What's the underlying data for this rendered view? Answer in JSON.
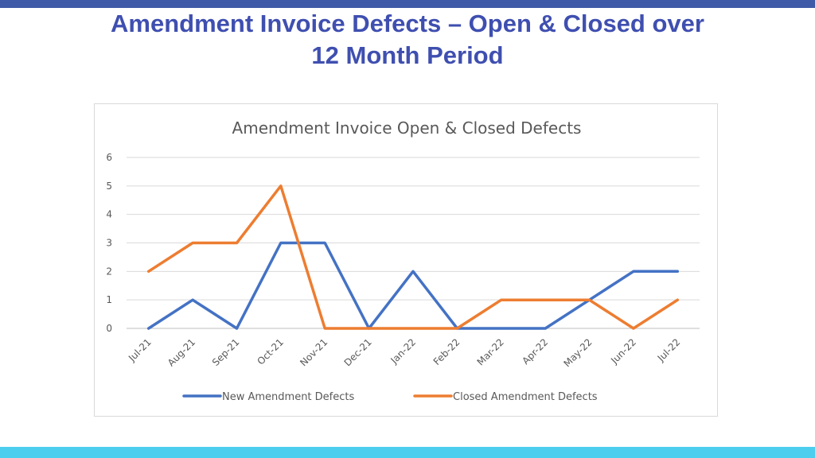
{
  "slide": {
    "title_line1": "Amendment Invoice Defects – Open & Closed over",
    "title_line2": "12 Month Period",
    "top_bar_color": "#3f5aa6",
    "bottom_bar_color": "#4ccfee",
    "title_color": "#3f4fb0"
  },
  "chart_data": {
    "type": "line",
    "title": "Amendment  Invoice Open & Closed  Defects",
    "categories": [
      "Jul-21",
      "Aug-21",
      "Sep-21",
      "Oct-21",
      "Nov-21",
      "Dec-21",
      "Jan-22",
      "Feb-22",
      "Mar-22",
      "Apr-22",
      "May-22",
      "Jun-22",
      "Jul-22"
    ],
    "series": [
      {
        "name": "New Amendment Defects",
        "color": "#4472c4",
        "values": [
          0,
          1,
          0,
          3,
          3,
          0,
          2,
          0,
          0,
          0,
          1,
          2,
          2
        ]
      },
      {
        "name": "Closed Amendment Defects",
        "color": "#ed7d31",
        "values": [
          2,
          3,
          3,
          5,
          0,
          0,
          0,
          0,
          1,
          1,
          1,
          0,
          1
        ]
      }
    ],
    "yticks": [
      0,
      1,
      2,
      3,
      4,
      5,
      6
    ],
    "ylim": [
      0,
      6
    ],
    "grid": true,
    "legend_position": "bottom"
  }
}
